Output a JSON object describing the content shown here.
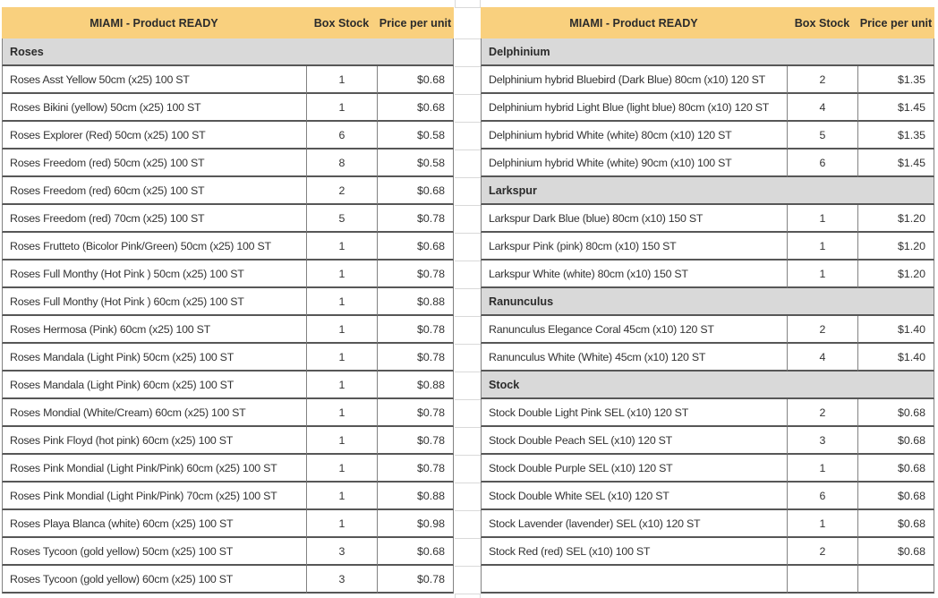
{
  "colors": {
    "header_bg": "#F9D07E",
    "section_bg": "#D9D9D9",
    "row_border_dark": "#575757",
    "cell_border_mid": "#828282",
    "sheet_gridline": "#D9D9D9",
    "text": "#333333"
  },
  "tables": [
    {
      "id": "left",
      "title": "MIAMI - Product READY",
      "columns": {
        "box_stock": "Box Stock",
        "price_per_unit": "Price per unit"
      },
      "trailing_empty_row": false,
      "sections": [
        {
          "name": "Roses",
          "rows": [
            {
              "product": "Roses Asst Yellow 50cm (x25) 100 ST",
              "box_stock": "1",
              "price": "$0.68"
            },
            {
              "product": "Roses Bikini (yellow) 50cm (x25) 100 ST",
              "box_stock": "1",
              "price": "$0.68"
            },
            {
              "product": "Roses Explorer (Red) 50cm (x25) 100 ST",
              "box_stock": "6",
              "price": "$0.58"
            },
            {
              "product": "Roses Freedom (red) 50cm (x25) 100 ST",
              "box_stock": "8",
              "price": "$0.58"
            },
            {
              "product": "Roses Freedom (red) 60cm (x25) 100 ST",
              "box_stock": "2",
              "price": "$0.68"
            },
            {
              "product": "Roses Freedom (red) 70cm (x25) 100 ST",
              "box_stock": "5",
              "price": "$0.78"
            },
            {
              "product": "Roses Frutteto (Bicolor Pink/Green) 50cm (x25) 100 ST",
              "box_stock": "1",
              "price": "$0.68"
            },
            {
              "product": "Roses Full Monthy (Hot Pink ) 50cm (x25) 100 ST",
              "box_stock": "1",
              "price": "$0.78"
            },
            {
              "product": "Roses Full Monthy (Hot Pink ) 60cm (x25) 100 ST",
              "box_stock": "1",
              "price": "$0.88"
            },
            {
              "product": "Roses Hermosa (Pink) 60cm (x25) 100 ST",
              "box_stock": "1",
              "price": "$0.78"
            },
            {
              "product": "Roses Mandala (Light Pink) 50cm (x25) 100 ST",
              "box_stock": "1",
              "price": "$0.78"
            },
            {
              "product": "Roses Mandala (Light Pink) 60cm (x25) 100 ST",
              "box_stock": "1",
              "price": "$0.88"
            },
            {
              "product": "Roses Mondial (White/Cream) 60cm (x25) 100 ST",
              "box_stock": "1",
              "price": "$0.78"
            },
            {
              "product": "Roses Pink Floyd (hot pink) 60cm (x25) 100 ST",
              "box_stock": "1",
              "price": "$0.78"
            },
            {
              "product": "Roses Pink Mondial (Light Pink/Pink) 60cm (x25) 100 ST",
              "box_stock": "1",
              "price": "$0.78"
            },
            {
              "product": "Roses Pink Mondial (Light Pink/Pink) 70cm (x25) 100 ST",
              "box_stock": "1",
              "price": "$0.88"
            },
            {
              "product": "Roses Playa Blanca (white) 60cm (x25) 100 ST",
              "box_stock": "1",
              "price": "$0.98"
            },
            {
              "product": "Roses Tycoon (gold yellow) 50cm (x25) 100 ST",
              "box_stock": "3",
              "price": "$0.68"
            },
            {
              "product": "Roses Tycoon (gold yellow) 60cm (x25) 100 ST",
              "box_stock": "3",
              "price": "$0.78"
            }
          ]
        }
      ]
    },
    {
      "id": "right",
      "title": "MIAMI - Product READY",
      "columns": {
        "box_stock": "Box Stock",
        "price_per_unit": "Price per unit"
      },
      "trailing_empty_row": true,
      "sections": [
        {
          "name": "Delphinium",
          "rows": [
            {
              "product": "Delphinium hybrid Bluebird (Dark Blue) 80cm (x10) 120 ST",
              "box_stock": "2",
              "price": "$1.35"
            },
            {
              "product": "Delphinium hybrid Light Blue (light blue) 80cm (x10) 120 ST",
              "box_stock": "4",
              "price": "$1.45"
            },
            {
              "product": "Delphinium hybrid White (white) 80cm (x10) 120 ST",
              "box_stock": "5",
              "price": "$1.35"
            },
            {
              "product": "Delphinium hybrid White (white) 90cm (x10) 100 ST",
              "box_stock": "6",
              "price": "$1.45"
            }
          ]
        },
        {
          "name": "Larkspur",
          "rows": [
            {
              "product": "Larkspur Dark Blue (blue) 80cm (x10) 150 ST",
              "box_stock": "1",
              "price": "$1.20"
            },
            {
              "product": "Larkspur Pink (pink) 80cm (x10) 150 ST",
              "box_stock": "1",
              "price": "$1.20"
            },
            {
              "product": "Larkspur White (white) 80cm (x10) 150 ST",
              "box_stock": "1",
              "price": "$1.20"
            }
          ]
        },
        {
          "name": "Ranunculus",
          "rows": [
            {
              "product": "Ranunculus Elegance Coral 45cm (x10) 120 ST",
              "box_stock": "2",
              "price": "$1.40"
            },
            {
              "product": "Ranunculus White (White) 45cm (x10) 120 ST",
              "box_stock": "4",
              "price": "$1.40"
            }
          ]
        },
        {
          "name": "Stock",
          "rows": [
            {
              "product": "Stock Double Light Pink SEL (x10) 120 ST",
              "box_stock": "2",
              "price": "$0.68"
            },
            {
              "product": "Stock Double Peach SEL (x10) 120 ST",
              "box_stock": "3",
              "price": "$0.68"
            },
            {
              "product": "Stock Double Purple SEL (x10) 120 ST",
              "box_stock": "1",
              "price": "$0.68"
            },
            {
              "product": "Stock Double White SEL (x10) 120 ST",
              "box_stock": "6",
              "price": "$0.68"
            },
            {
              "product": "Stock Lavender (lavender) SEL (x10) 120 ST",
              "box_stock": "1",
              "price": "$0.68"
            },
            {
              "product": "Stock Red (red) SEL (x10) 100 ST",
              "box_stock": "2",
              "price": "$0.68"
            }
          ]
        }
      ]
    }
  ]
}
